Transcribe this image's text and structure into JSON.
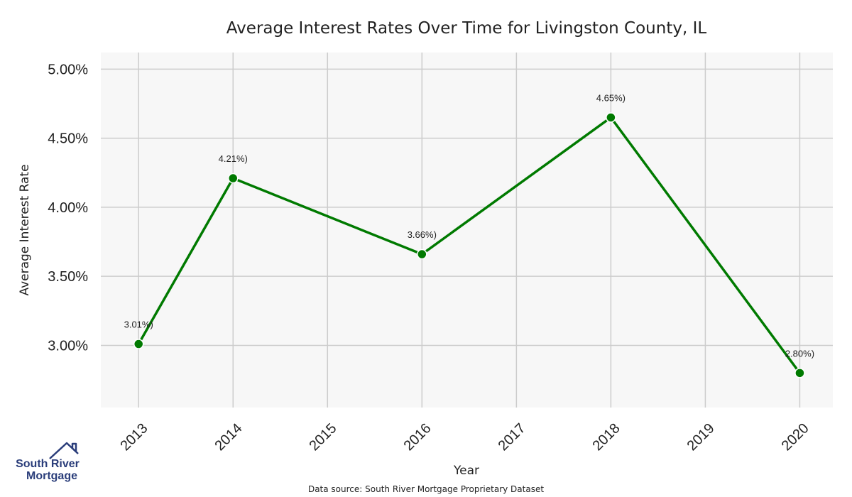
{
  "chart_data": {
    "type": "line",
    "title": "Average Interest Rates Over Time for Livingston County, IL",
    "xlabel": "Year",
    "ylabel": "Average Interest Rate",
    "x": [
      "2013",
      "2014",
      "2016",
      "2018",
      "2020"
    ],
    "values": [
      3.01,
      4.21,
      3.66,
      4.65,
      2.8
    ],
    "data_labels": [
      "3.01%)",
      "4.21%)",
      "3.66%)",
      "4.65%)",
      "2.80%)"
    ],
    "x_ticks": [
      "2013",
      "2014",
      "2015",
      "2016",
      "2017",
      "2018",
      "2019",
      "2020"
    ],
    "y_ticks": [
      3.0,
      3.5,
      4.0,
      4.5,
      5.0
    ],
    "y_tick_labels": [
      "3.00%",
      "3.50%",
      "4.00%",
      "4.50%",
      "5.00%"
    ],
    "xlim": [
      2012.6,
      2020.35
    ],
    "ylim": [
      2.55,
      5.12
    ],
    "grid": true,
    "line_color": "#007a00",
    "background_color": "#f7f7f7",
    "grid_color": "#cccccc"
  },
  "source_note": "Data source: South River Mortgage Proprietary Dataset",
  "logo": {
    "line1": "South River",
    "line2": "Mortgage",
    "color": "#2a3d7a",
    "icon": "house-roof-icon"
  }
}
